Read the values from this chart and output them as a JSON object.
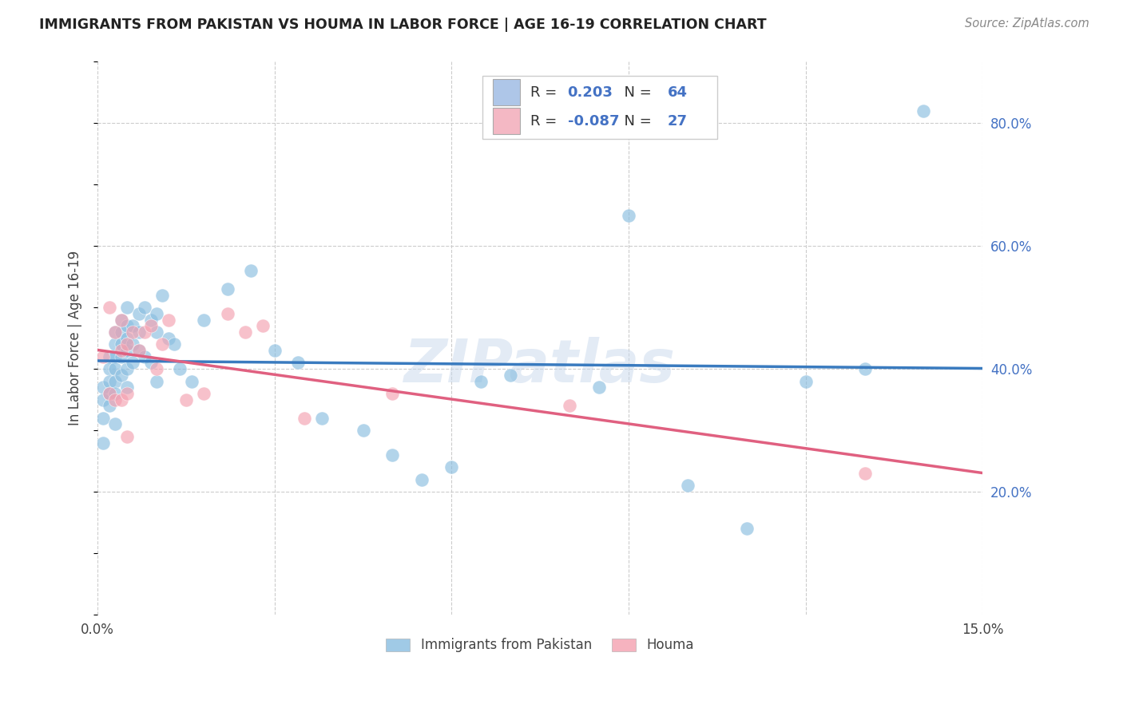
{
  "title": "IMMIGRANTS FROM PAKISTAN VS HOUMA IN LABOR FORCE | AGE 16-19 CORRELATION CHART",
  "source": "Source: ZipAtlas.com",
  "ylabel": "In Labor Force | Age 16-19",
  "xlim": [
    0.0,
    0.15
  ],
  "ylim": [
    0.0,
    0.9
  ],
  "xtick_positions": [
    0.0,
    0.03,
    0.06,
    0.09,
    0.12,
    0.15
  ],
  "xtick_labels": [
    "0.0%",
    "",
    "",
    "",
    "",
    "15.0%"
  ],
  "ytick_positions": [
    0.2,
    0.4,
    0.6,
    0.8
  ],
  "ytick_labels": [
    "20.0%",
    "40.0%",
    "60.0%",
    "80.0%"
  ],
  "blue_color": "#89bde0",
  "blue_line_color": "#3a7bbf",
  "pink_color": "#f4a0b0",
  "pink_line_color": "#e06080",
  "legend_box_blue": "#aec6e8",
  "legend_box_pink": "#f4b8c4",
  "r_blue": "0.203",
  "n_blue": "64",
  "r_pink": "-0.087",
  "n_pink": "27",
  "watermark": "ZIPatlas",
  "blue_scatter_x": [
    0.001,
    0.001,
    0.001,
    0.001,
    0.002,
    0.002,
    0.002,
    0.002,
    0.002,
    0.003,
    0.003,
    0.003,
    0.003,
    0.003,
    0.003,
    0.003,
    0.004,
    0.004,
    0.004,
    0.004,
    0.004,
    0.005,
    0.005,
    0.005,
    0.005,
    0.005,
    0.005,
    0.006,
    0.006,
    0.006,
    0.007,
    0.007,
    0.007,
    0.008,
    0.008,
    0.009,
    0.009,
    0.01,
    0.01,
    0.01,
    0.011,
    0.012,
    0.013,
    0.014,
    0.016,
    0.018,
    0.022,
    0.026,
    0.03,
    0.034,
    0.038,
    0.045,
    0.05,
    0.055,
    0.06,
    0.065,
    0.07,
    0.085,
    0.09,
    0.1,
    0.11,
    0.12,
    0.13,
    0.14
  ],
  "blue_scatter_y": [
    0.37,
    0.35,
    0.32,
    0.28,
    0.42,
    0.4,
    0.38,
    0.36,
    0.34,
    0.46,
    0.44,
    0.42,
    0.4,
    0.38,
    0.36,
    0.31,
    0.48,
    0.46,
    0.44,
    0.42,
    0.39,
    0.5,
    0.47,
    0.45,
    0.43,
    0.4,
    0.37,
    0.47,
    0.44,
    0.41,
    0.49,
    0.46,
    0.43,
    0.5,
    0.42,
    0.48,
    0.41,
    0.49,
    0.46,
    0.38,
    0.52,
    0.45,
    0.44,
    0.4,
    0.38,
    0.48,
    0.53,
    0.56,
    0.43,
    0.41,
    0.32,
    0.3,
    0.26,
    0.22,
    0.24,
    0.38,
    0.39,
    0.37,
    0.65,
    0.21,
    0.14,
    0.38,
    0.4,
    0.82
  ],
  "pink_scatter_x": [
    0.001,
    0.002,
    0.002,
    0.003,
    0.003,
    0.004,
    0.004,
    0.004,
    0.005,
    0.005,
    0.005,
    0.006,
    0.007,
    0.008,
    0.009,
    0.01,
    0.011,
    0.012,
    0.015,
    0.018,
    0.022,
    0.025,
    0.028,
    0.035,
    0.05,
    0.08,
    0.13
  ],
  "pink_scatter_y": [
    0.42,
    0.5,
    0.36,
    0.46,
    0.35,
    0.43,
    0.35,
    0.48,
    0.44,
    0.36,
    0.29,
    0.46,
    0.43,
    0.46,
    0.47,
    0.4,
    0.44,
    0.48,
    0.35,
    0.36,
    0.49,
    0.46,
    0.47,
    0.32,
    0.36,
    0.34,
    0.23
  ],
  "background_color": "#ffffff",
  "grid_color": "#cccccc"
}
